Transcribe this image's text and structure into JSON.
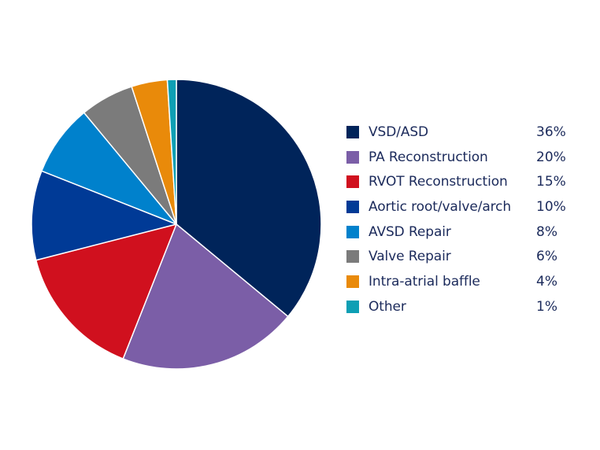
{
  "chart_data": {
    "type": "pie",
    "title": "",
    "legend_position": "right",
    "slices": [
      {
        "label": "VSD/ASD",
        "value": 36,
        "value_label": "36%",
        "color": "#00245a"
      },
      {
        "label": "PA Reconstruction",
        "value": 20,
        "value_label": "20%",
        "color": "#7b5ea7"
      },
      {
        "label": "RVOT Reconstruction",
        "value": 15,
        "value_label": "15%",
        "color": "#d0101e"
      },
      {
        "label": "Aortic root/valve/arch",
        "value": 10,
        "value_label": "10%",
        "color": "#003a96"
      },
      {
        "label": "AVSD Repair",
        "value": 8,
        "value_label": "8%",
        "color": "#0081cc"
      },
      {
        "label": "Valve Repair",
        "value": 6,
        "value_label": "6%",
        "color": "#7b7b7b"
      },
      {
        "label": "Intra-atrial baffle",
        "value": 4,
        "value_label": "4%",
        "color": "#e98a0a"
      },
      {
        "label": "Other",
        "value": 1,
        "value_label": "1%",
        "color": "#0e9fb4"
      }
    ]
  }
}
